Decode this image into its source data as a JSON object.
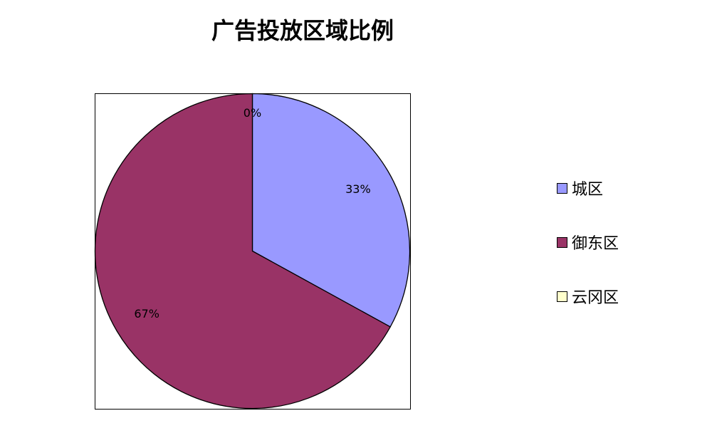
{
  "chart_data": {
    "type": "pie",
    "title": "广告投放区域比例",
    "categories": [
      "城区",
      "御东区",
      "云冈区"
    ],
    "values": [
      33,
      67,
      0
    ],
    "data_labels": [
      "33%",
      "67%",
      "0%"
    ],
    "colors": [
      "#9999FF",
      "#993366",
      "#FFFFCC"
    ],
    "start_angle": "top",
    "direction": "clockwise",
    "legend_position": "right"
  }
}
